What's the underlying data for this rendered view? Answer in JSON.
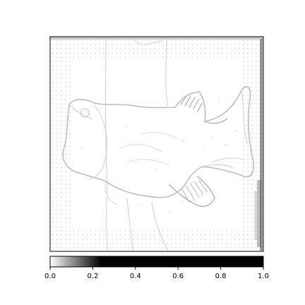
{
  "figure": {
    "image_description": "grayscale saliency/gradient map outlining a fish silhouette",
    "colormap": {
      "name": "gray_r",
      "low_color": "#ffffff",
      "high_color": "#000000"
    }
  },
  "colorbar": {
    "min": 0.0,
    "max": 1.0,
    "ticks": [
      {
        "value": 0.0,
        "label": "0.0"
      },
      {
        "value": 0.2,
        "label": "0.2"
      },
      {
        "value": 0.4,
        "label": "0.4"
      },
      {
        "value": 0.6,
        "label": "0.6"
      },
      {
        "value": 0.8,
        "label": "0.8"
      },
      {
        "value": 1.0,
        "label": "1.0"
      }
    ],
    "saturation_start": 0.24
  }
}
